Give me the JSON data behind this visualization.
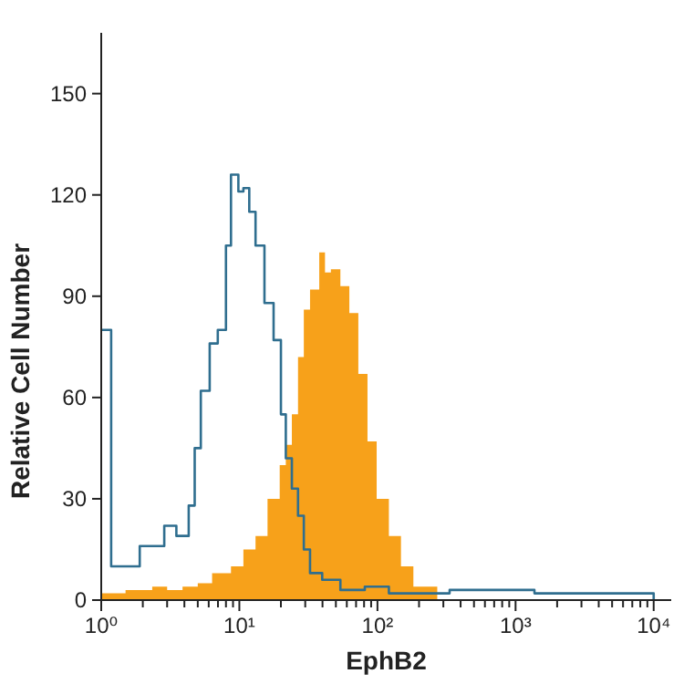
{
  "chart_data": {
    "type": "step",
    "xlabel": "EphB2",
    "ylabel": "Relative Cell Number",
    "log": "x",
    "grid": false,
    "xlim": [
      1,
      13400
    ],
    "ylim": [
      0,
      168
    ],
    "xticks": [
      {
        "value": 1,
        "label": "10⁰"
      },
      {
        "value": 2,
        "label": null
      },
      {
        "value": 3,
        "label": null
      },
      {
        "value": 4,
        "label": null
      },
      {
        "value": 5,
        "label": null
      },
      {
        "value": 6,
        "label": null
      },
      {
        "value": 7,
        "label": null
      },
      {
        "value": 8,
        "label": null
      },
      {
        "value": 9,
        "label": null
      },
      {
        "value": 10,
        "label": "10¹"
      },
      {
        "value": 20,
        "label": null
      },
      {
        "value": 30,
        "label": null
      },
      {
        "value": 40,
        "label": null
      },
      {
        "value": 50,
        "label": null
      },
      {
        "value": 60,
        "label": null
      },
      {
        "value": 70,
        "label": null
      },
      {
        "value": 80,
        "label": null
      },
      {
        "value": 90,
        "label": null
      },
      {
        "value": 100,
        "label": "10²"
      },
      {
        "value": 200,
        "label": null
      },
      {
        "value": 300,
        "label": null
      },
      {
        "value": 400,
        "label": null
      },
      {
        "value": 500,
        "label": null
      },
      {
        "value": 600,
        "label": null
      },
      {
        "value": 700,
        "label": null
      },
      {
        "value": 800,
        "label": null
      },
      {
        "value": 900,
        "label": null
      },
      {
        "value": 1000,
        "label": "10³"
      },
      {
        "value": 2000,
        "label": null
      },
      {
        "value": 3000,
        "label": null
      },
      {
        "value": 4000,
        "label": null
      },
      {
        "value": 5000,
        "label": null
      },
      {
        "value": 6000,
        "label": null
      },
      {
        "value": 7000,
        "label": null
      },
      {
        "value": 8000,
        "label": null
      },
      {
        "value": 9000,
        "label": null
      },
      {
        "value": 10000,
        "label": "10⁴"
      }
    ],
    "yticks": [
      0,
      30,
      60,
      90,
      120,
      150
    ],
    "series": [
      {
        "type": "area",
        "color": "#f7a11a",
        "x": [
          1,
          1.5,
          2.34,
          3.0,
          3.88,
          5.0,
          6.35,
          8.7,
          10.7,
          13.1,
          16,
          19.6,
          21.7,
          24,
          26.6,
          29.3,
          32.5,
          37.9,
          41.7,
          46,
          53.9,
          62.6,
          72.7,
          84.7,
          98.7,
          121,
          148,
          182,
          271
        ],
        "values": [
          2,
          3,
          4,
          3,
          4,
          5,
          8,
          10,
          15,
          19,
          30,
          40,
          46,
          55,
          72,
          86,
          92,
          103,
          97,
          98,
          93,
          85,
          67,
          47,
          30,
          19,
          10,
          4,
          0
        ]
      },
      {
        "color": "#2f6e8f",
        "x": [
          1,
          1.18,
          1.9,
          2.86,
          3.5,
          4.3,
          4.75,
          5.26,
          6.1,
          6.98,
          8.0,
          8.7,
          9.84,
          10.7,
          11.8,
          13.1,
          15.2,
          17.7,
          20,
          21.7,
          24,
          26.6,
          29.3,
          32.5,
          39.8,
          53.9,
          81,
          121,
          333,
          612,
          829,
          1240,
          1370,
          10000
        ],
        "values": [
          80,
          10,
          16,
          22,
          19,
          28,
          45,
          62,
          76,
          80,
          105,
          126,
          121,
          122,
          115,
          105,
          88,
          77,
          55,
          42,
          33,
          25,
          15,
          8,
          6,
          3,
          4,
          2,
          3,
          3,
          3,
          3,
          2,
          0
        ]
      }
    ]
  }
}
